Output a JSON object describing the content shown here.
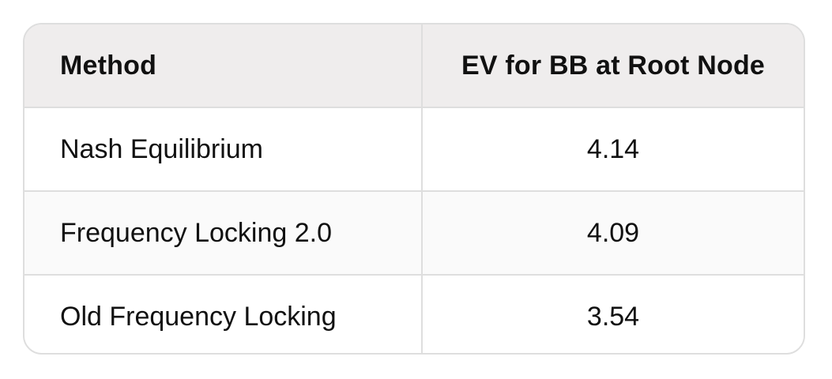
{
  "table": {
    "headers": [
      "Method",
      "EV for BB at Root Node"
    ],
    "rows": [
      [
        "Nash Equilibrium",
        "4.14"
      ],
      [
        "Frequency Locking 2.0",
        "4.09"
      ],
      [
        "Old Frequency Locking",
        "3.54"
      ]
    ]
  },
  "colors": {
    "border": "#dedede",
    "header_bg": "#efeded",
    "text": "#111111"
  }
}
